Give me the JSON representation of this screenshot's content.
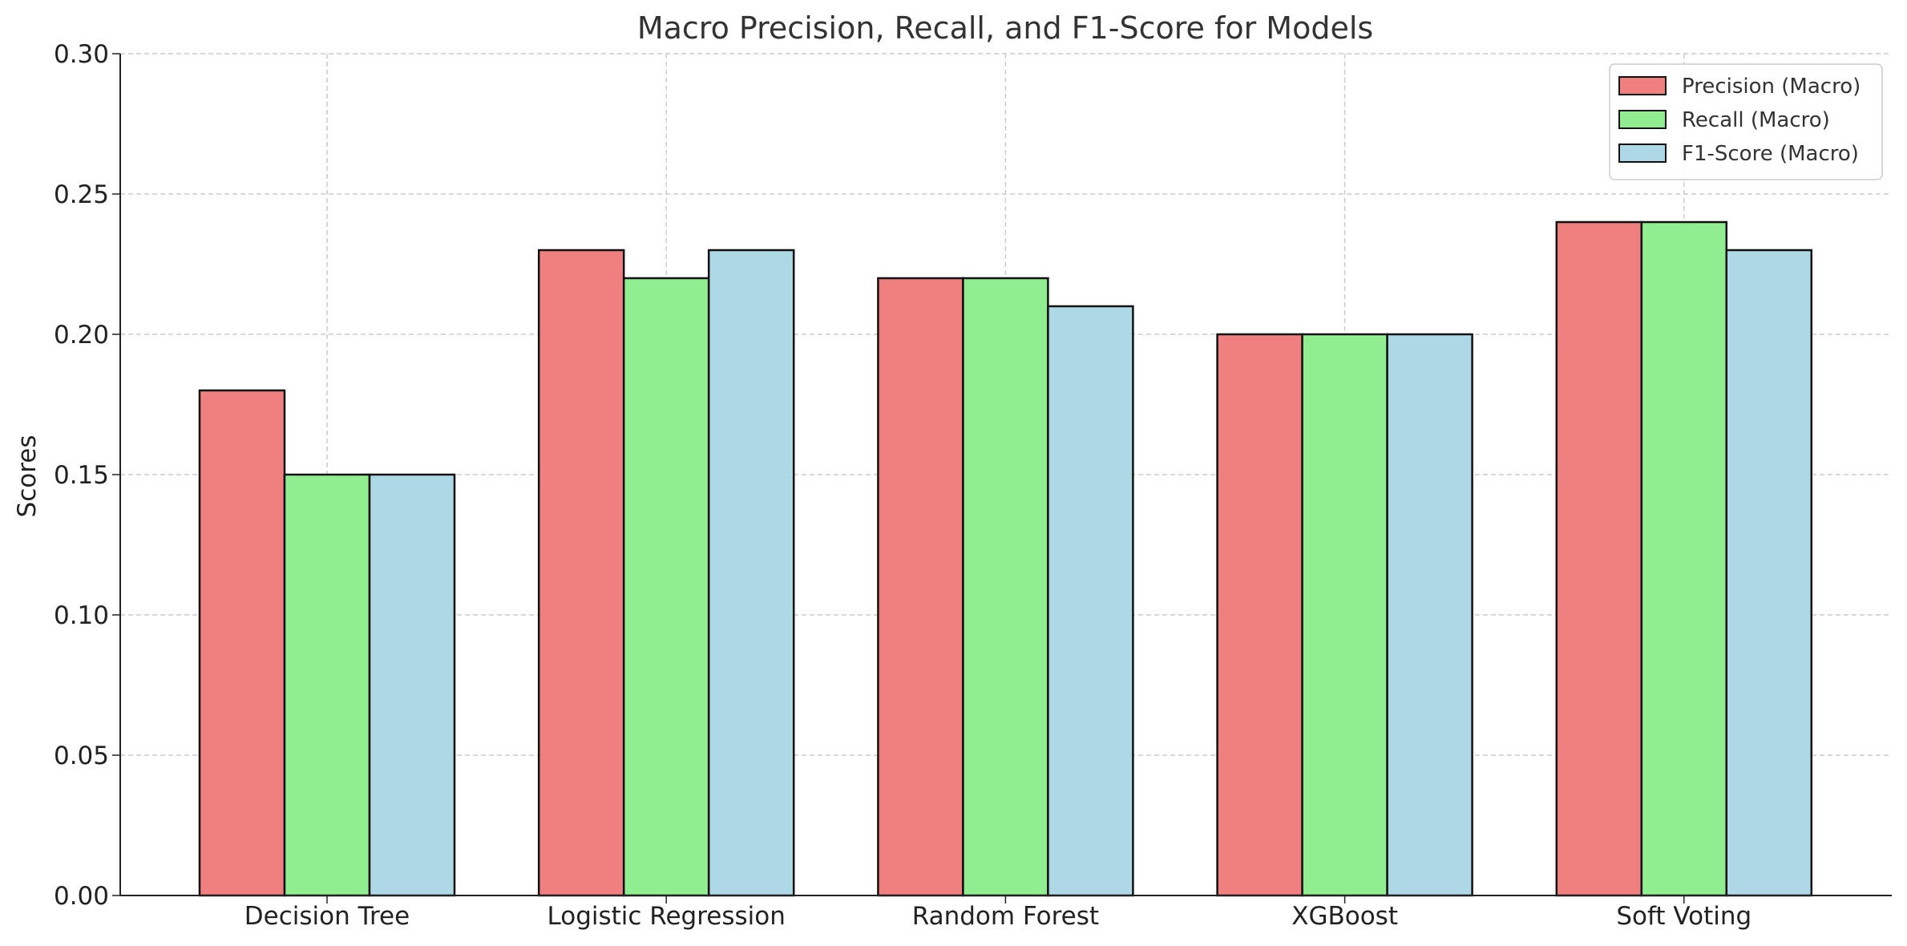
{
  "chart_data": {
    "type": "bar",
    "title": "Macro Precision, Recall, and F1-Score for Models",
    "xlabel": "",
    "ylabel": "Scores",
    "categories": [
      "Decision Tree",
      "Logistic Regression",
      "Random Forest",
      "XGBoost",
      "Soft Voting"
    ],
    "series": [
      {
        "name": "Precision (Macro)",
        "color": "#f08080",
        "values": [
          0.18,
          0.23,
          0.22,
          0.2,
          0.24
        ]
      },
      {
        "name": "Recall (Macro)",
        "color": "#90ee90",
        "values": [
          0.15,
          0.22,
          0.22,
          0.2,
          0.24
        ]
      },
      {
        "name": "F1-Score (Macro)",
        "color": "#add8e6",
        "values": [
          0.15,
          0.23,
          0.21,
          0.2,
          0.23
        ]
      }
    ],
    "ylim": [
      0,
      0.3
    ],
    "yticks": [
      "0.00",
      "0.05",
      "0.10",
      "0.15",
      "0.20",
      "0.25",
      "0.30"
    ],
    "grid": true,
    "legend_position": "top-right"
  }
}
